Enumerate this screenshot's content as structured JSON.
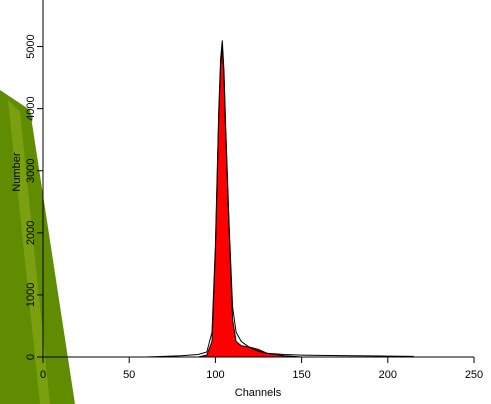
{
  "chart_data": {
    "type": "line",
    "x_label": "Channels",
    "y_label": "Number",
    "x": [
      60,
      70,
      80,
      90,
      95,
      98,
      100,
      102,
      103,
      104,
      105,
      106,
      108,
      110,
      112,
      115,
      120,
      125,
      130,
      140,
      150,
      160,
      180,
      200,
      215
    ],
    "series": [
      {
        "color": "#ff0000",
        "fill": true,
        "values": [
          0,
          0,
          0,
          0,
          30,
          250,
          1700,
          3900,
          4700,
          5000,
          4500,
          3600,
          2000,
          600,
          250,
          180,
          160,
          120,
          60,
          20,
          0,
          0,
          0,
          0,
          0
        ]
      },
      {
        "color": "#000000",
        "fill": false,
        "values": [
          0,
          10,
          20,
          40,
          80,
          400,
          1800,
          4000,
          4800,
          5100,
          4600,
          3700,
          2100,
          800,
          400,
          250,
          150,
          90,
          60,
          40,
          30,
          25,
          20,
          15,
          10
        ]
      }
    ],
    "xlim": [
      0,
      250
    ],
    "xticks": [
      0,
      50,
      100,
      150,
      200,
      250
    ],
    "ylim": [
      0,
      5750
    ],
    "yticks": [
      0,
      1000,
      2000,
      3000,
      4000,
      5000
    ]
  }
}
